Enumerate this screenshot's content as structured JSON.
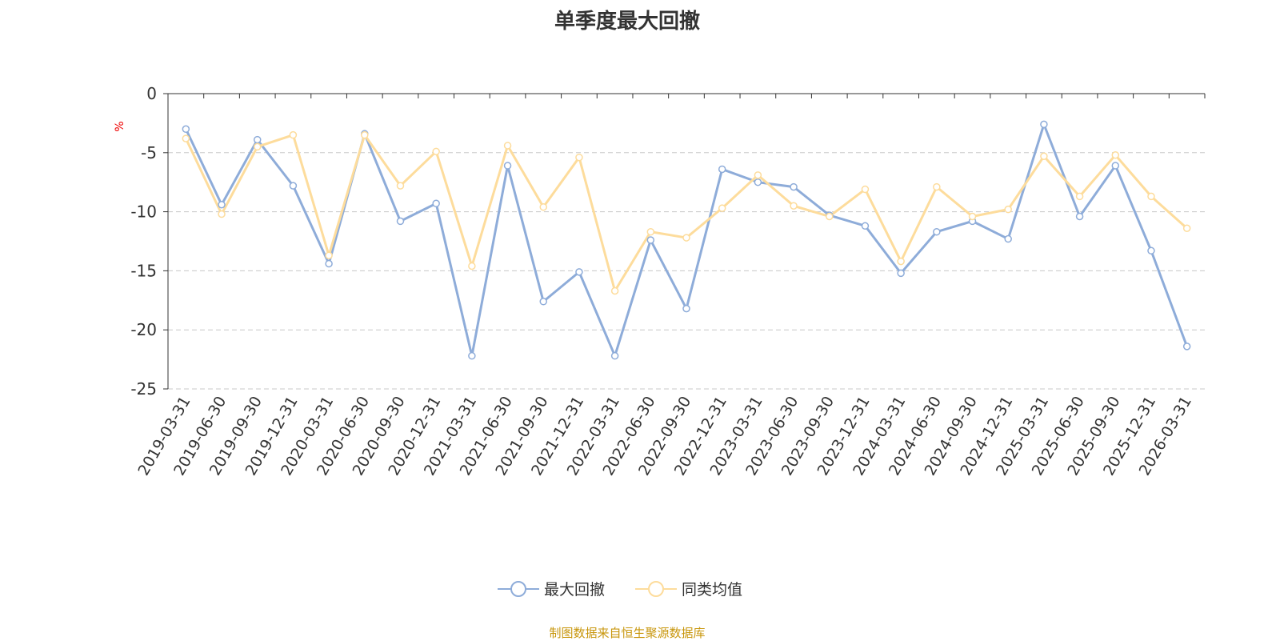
{
  "chart_data": {
    "type": "line",
    "title": "单季度最大回撤",
    "ylabel": "%",
    "xlabel": "",
    "ylim": [
      -25,
      0
    ],
    "yticks": [
      0,
      -5,
      -10,
      -15,
      -20,
      -25
    ],
    "grid": true,
    "legend_position": "bottom",
    "categories": [
      "2019-03-31",
      "2019-06-30",
      "2019-09-30",
      "2019-12-31",
      "2020-03-31",
      "2020-06-30",
      "2020-09-30",
      "2020-12-31",
      "2021-03-31",
      "2021-06-30",
      "2021-09-30",
      "2021-12-31",
      "2022-03-31",
      "2022-06-30",
      "2022-09-30",
      "2022-12-31",
      "2023-03-31",
      "2023-06-30",
      "2023-09-30",
      "2023-12-31",
      "2024-03-31",
      "2024-06-30",
      "2024-09-30",
      "2024-12-31",
      "2025-03-31",
      "2025-06-30",
      "2025-09-30",
      "2025-12-31",
      "2026-03-31"
    ],
    "series": [
      {
        "name": "最大回撤",
        "color": "#8eacd9",
        "values": [
          -3.0,
          -9.4,
          -3.9,
          -7.8,
          -14.4,
          -3.4,
          -10.8,
          -9.3,
          -22.2,
          -6.1,
          -17.6,
          -15.1,
          -22.2,
          -12.4,
          -18.2,
          -6.4,
          -7.5,
          -7.9,
          -10.3,
          -11.2,
          -15.2,
          -11.7,
          -10.8,
          -12.3,
          -2.6,
          -10.4,
          -6.1,
          -13.3,
          -21.4
        ]
      },
      {
        "name": "同类均值",
        "color": "#fddc9c",
        "values": [
          -3.8,
          -10.2,
          -4.5,
          -3.5,
          -13.7,
          -3.5,
          -7.8,
          -4.9,
          -14.6,
          -4.4,
          -9.6,
          -5.4,
          -16.7,
          -11.7,
          -12.2,
          -9.7,
          -6.9,
          -9.5,
          -10.4,
          -8.1,
          -14.2,
          -7.9,
          -10.4,
          -9.8,
          -5.3,
          -8.7,
          -5.2,
          -8.7,
          -11.4
        ]
      }
    ]
  },
  "source": "制图数据来自恒生聚源数据库"
}
